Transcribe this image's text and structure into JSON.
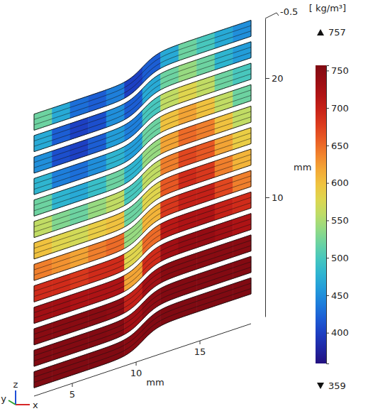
{
  "chart_data": {
    "type": "heatmap",
    "x_label": "mm",
    "z_label": "mm",
    "xlim": [
      2,
      19
    ],
    "xticks": [
      5,
      10,
      15
    ],
    "ylim": [
      -0.5,
      0.5
    ],
    "yticks": [
      -0.5
    ],
    "zlim": [
      0,
      25
    ],
    "zticks": [
      10,
      20
    ],
    "triad_labels": {
      "x": "x",
      "y": "y",
      "z": "z"
    },
    "colorbar": {
      "label": "[ kg/m³]",
      "range": [
        359,
        757
      ],
      "ticks": [
        400,
        450,
        500,
        550,
        600,
        650,
        700,
        750
      ],
      "max": 757,
      "min": 359
    },
    "cells": [
      [
        757,
        757,
        757,
        757,
        757,
        750,
        755,
        757,
        757,
        757,
        757,
        757
      ],
      [
        755,
        755,
        755,
        755,
        752,
        730,
        745,
        755,
        755,
        755,
        755,
        755
      ],
      [
        750,
        750,
        750,
        750,
        745,
        700,
        730,
        750,
        750,
        750,
        750,
        750
      ],
      [
        730,
        730,
        720,
        720,
        720,
        620,
        690,
        730,
        740,
        740,
        730,
        720
      ],
      [
        690,
        690,
        680,
        690,
        690,
        580,
        650,
        710,
        720,
        720,
        700,
        690
      ],
      [
        640,
        630,
        620,
        640,
        650,
        540,
        610,
        680,
        700,
        700,
        670,
        640
      ],
      [
        600,
        580,
        570,
        590,
        600,
        520,
        580,
        660,
        690,
        680,
        640,
        610
      ],
      [
        560,
        530,
        520,
        540,
        560,
        500,
        560,
        640,
        670,
        660,
        620,
        590
      ],
      [
        520,
        480,
        470,
        490,
        520,
        480,
        540,
        620,
        650,
        640,
        600,
        560
      ],
      [
        480,
        440,
        430,
        450,
        480,
        460,
        520,
        600,
        620,
        600,
        560,
        520
      ],
      [
        450,
        410,
        400,
        420,
        460,
        440,
        500,
        560,
        580,
        560,
        520,
        500
      ],
      [
        470,
        420,
        400,
        410,
        450,
        420,
        470,
        520,
        540,
        520,
        480,
        460
      ],
      [
        520,
        470,
        430,
        420,
        440,
        400,
        420,
        470,
        520,
        500,
        470,
        450
      ]
    ]
  }
}
